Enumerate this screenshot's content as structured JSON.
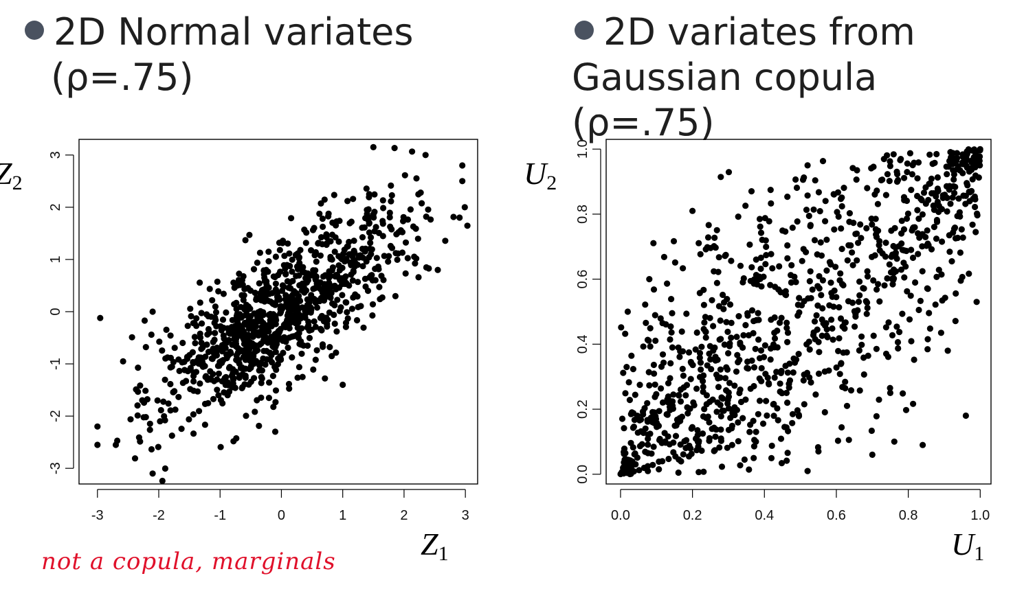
{
  "headings": {
    "left_line1": "2D Normal variates",
    "left_line2": "(ρ=.75)",
    "right_line1": "2D variates from",
    "right_line2": "Gaussian copula (ρ=.75)"
  },
  "annotation": "not a copula, marginals",
  "colors": {
    "points": "#000000",
    "bullet": "#4a5260",
    "annotation": "#e0102a"
  },
  "chart_data": [
    {
      "type": "scatter",
      "title": "2D Normal variates (ρ=.75)",
      "xlabel": "Z1",
      "ylabel": "Z2",
      "xlim": [
        -3.3,
        3.2
      ],
      "ylim": [
        -3.3,
        3.3
      ],
      "xticks": [
        -3,
        -2,
        -1,
        0,
        1,
        2,
        3
      ],
      "yticks": [
        -3,
        -2,
        -1,
        0,
        1,
        2,
        3
      ],
      "xtick_labels": [
        "-3",
        "-2",
        "-1",
        "0",
        "1",
        "2",
        "3"
      ],
      "ytick_labels": [
        "-3",
        "-2",
        "-1",
        "0",
        "1",
        "2",
        "3"
      ],
      "grid": false,
      "n_points": 1000,
      "correlation": 0.75,
      "distribution": "bivariate normal, standard margins",
      "notable_points": [
        [
          -3.0,
          -2.2
        ],
        [
          -3.0,
          -2.55
        ],
        [
          -2.7,
          -2.55
        ],
        [
          -2.1,
          -3.1
        ],
        [
          -2.1,
          0.0
        ],
        [
          -0.1,
          -2.3
        ],
        [
          1.5,
          3.15
        ],
        [
          2.35,
          3.0
        ],
        [
          2.95,
          2.8
        ],
        [
          2.95,
          2.5
        ],
        [
          2.55,
          0.8
        ],
        [
          1.0,
          -1.4
        ]
      ]
    },
    {
      "type": "scatter",
      "title": "2D variates from Gaussian copula (ρ=.75)",
      "xlabel": "U1",
      "ylabel": "U2",
      "xlim": [
        -0.04,
        1.03
      ],
      "ylim": [
        -0.03,
        1.03
      ],
      "xticks": [
        0.0,
        0.2,
        0.4,
        0.6,
        0.8,
        1.0
      ],
      "yticks": [
        0.0,
        0.2,
        0.4,
        0.6,
        0.8,
        1.0
      ],
      "xtick_labels": [
        "0.0",
        "0.2",
        "0.4",
        "0.6",
        "0.8",
        "1.0"
      ],
      "ytick_labels": [
        "0.0",
        "0.2",
        "0.4",
        "0.6",
        "0.8",
        "1.0"
      ],
      "grid": false,
      "n_points": 1000,
      "correlation": 0.75,
      "distribution": "Gaussian copula, uniform margins",
      "notable_points": [
        [
          0.02,
          0.5
        ],
        [
          0.08,
          0.6
        ],
        [
          0.2,
          0.81
        ],
        [
          0.52,
          0.95
        ],
        [
          0.52,
          0.01
        ],
        [
          0.84,
          0.09
        ],
        [
          0.99,
          0.53
        ],
        [
          0.96,
          0.18
        ],
        [
          0.7,
          0.06
        ]
      ]
    }
  ]
}
